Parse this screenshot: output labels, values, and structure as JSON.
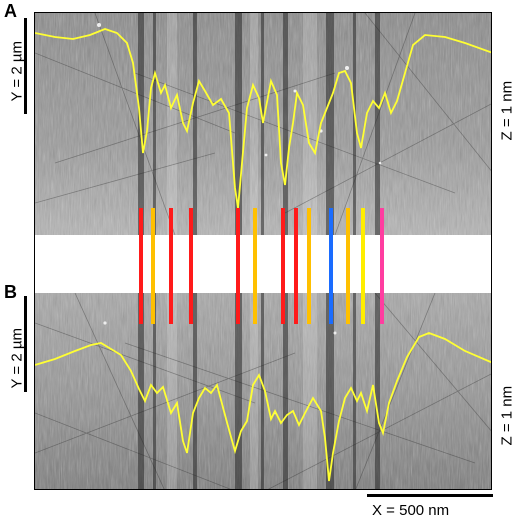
{
  "panels": [
    {
      "letter": "A",
      "y_label": "Y = 2 µm",
      "z_label": "Z = 1 nm"
    },
    {
      "letter": "B",
      "y_label": "Y = 2 µm",
      "z_label": "Z = 1 nm"
    }
  ],
  "x_scale_label": "X = 500 nm",
  "profile_color": "#ffff33",
  "marker_colors": [
    "#ff1a1a",
    "#ffc000",
    "#ff1a1a",
    "#ff1a1a",
    "#ff1a1a",
    "#ffc000",
    "#ff1a1a",
    "#ff1a1a",
    "#ffc000",
    "#1a6cff",
    "#ffc000",
    "#ffee00",
    "#ff3da0"
  ]
}
